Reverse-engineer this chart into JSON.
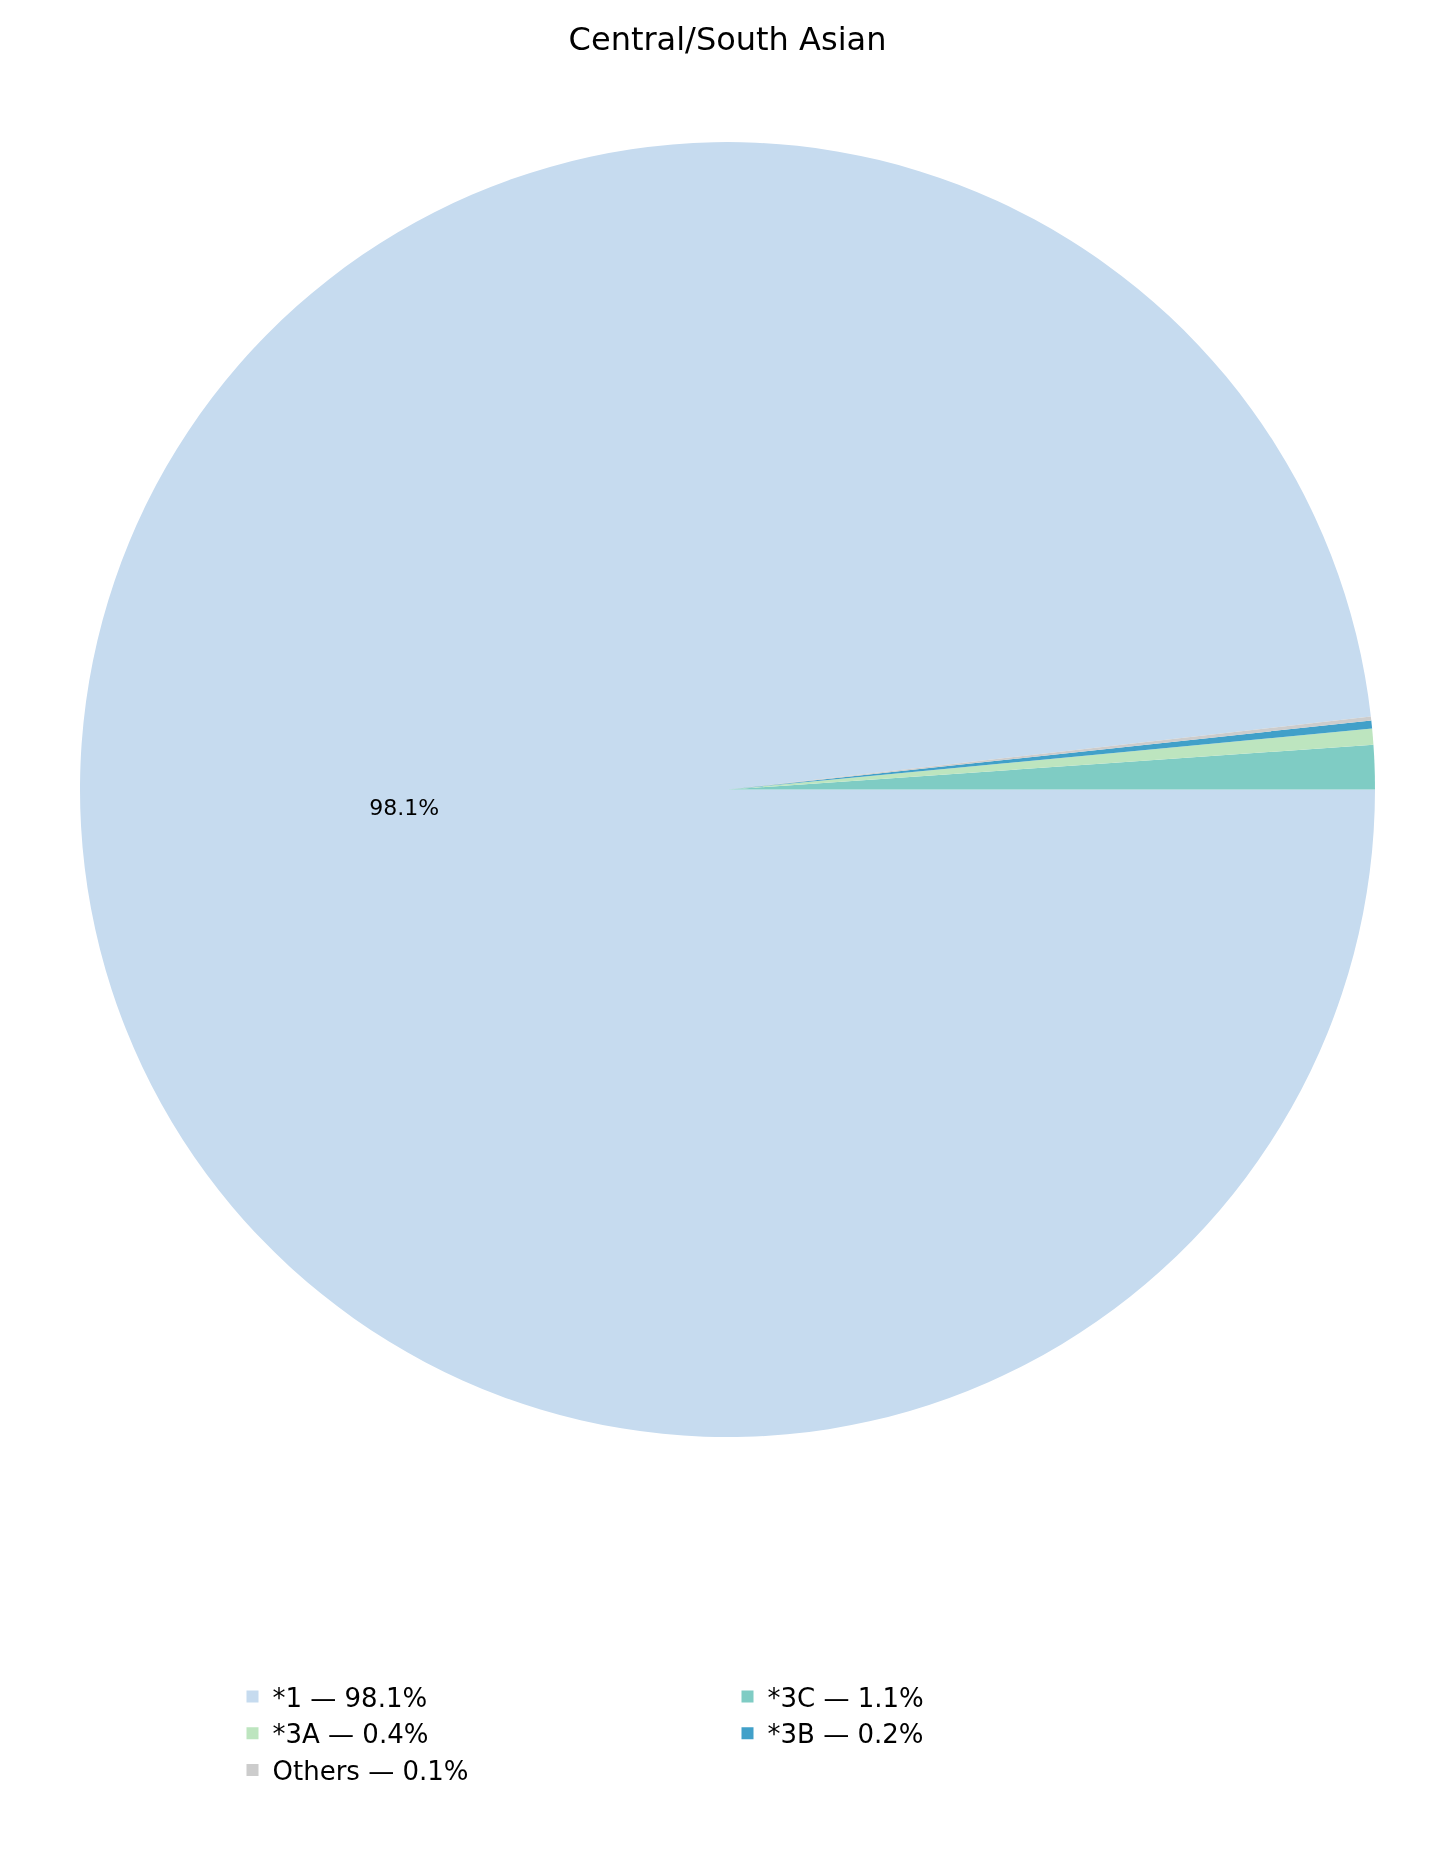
{
  "chart_data": {
    "type": "pie",
    "title": "Central/South Asian",
    "categories": [
      "*1 — 98.1%",
      "*3C — 1.1%",
      "*3A — 0.4%",
      "*3B — 0.2%",
      "Others — 0.1%"
    ],
    "values": [
      98.1,
      1.1,
      0.4,
      0.2,
      0.1
    ],
    "value_labels": [
      "98.1%",
      null,
      null,
      null,
      null
    ],
    "colors": [
      "#c6dbef",
      "#7fccc4",
      "#bde5bf",
      "#41a0c9",
      "#cccccc"
    ],
    "legend": "bottom"
  }
}
